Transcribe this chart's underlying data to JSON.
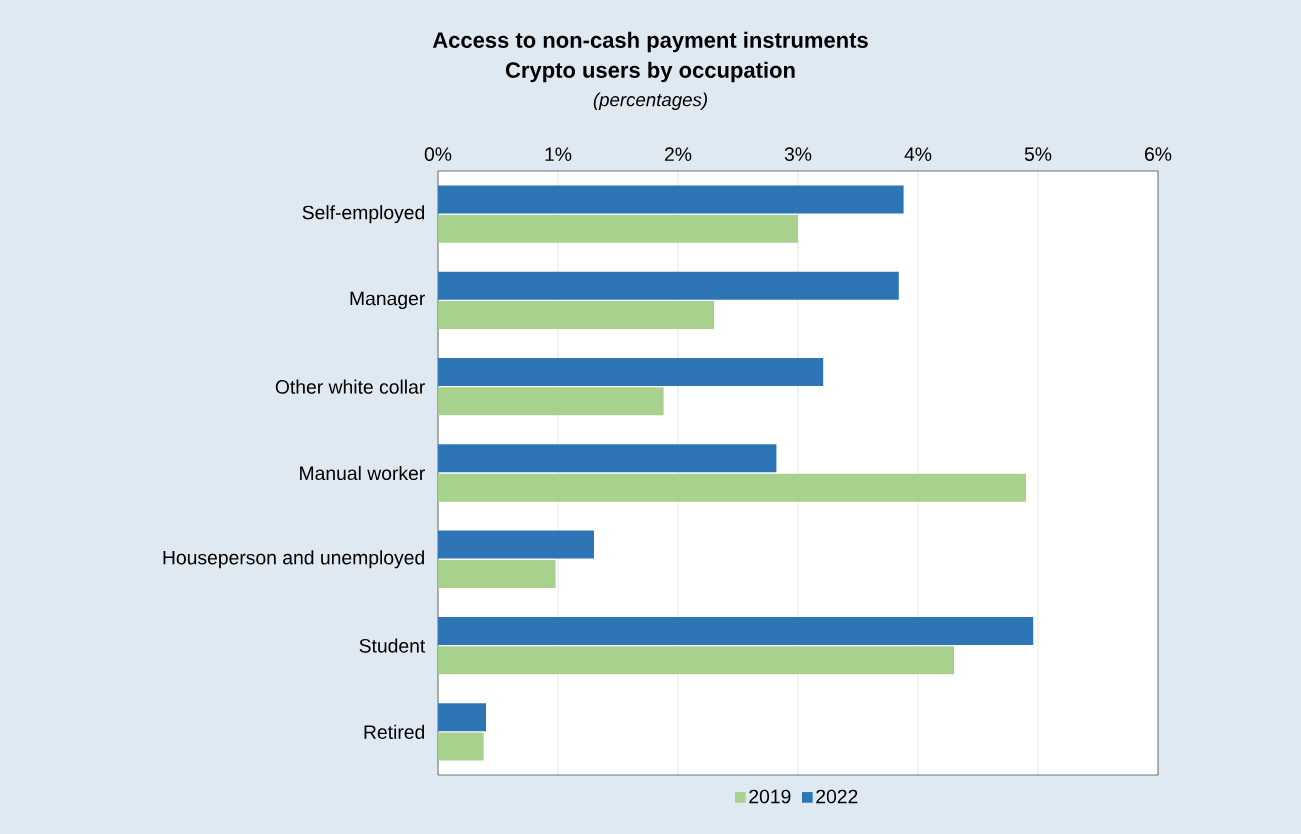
{
  "chart_data": {
    "type": "bar",
    "orientation": "horizontal",
    "title": "Access to non-cash payment instruments",
    "subtitle": "Crypto users by occupation",
    "annotations": [
      "(percentages)"
    ],
    "categories": [
      "Self-employed",
      "Manager",
      "Other white collar",
      "Manual worker",
      "Houseperson and unemployed",
      "Student",
      "Retired"
    ],
    "series": [
      {
        "name": "2019",
        "color": "#a9d18e",
        "values": [
          3.0,
          2.3,
          1.88,
          4.9,
          0.98,
          4.3,
          0.38
        ]
      },
      {
        "name": "2022",
        "color": "#2e75b6",
        "values": [
          3.88,
          3.84,
          3.21,
          2.82,
          1.3,
          4.96,
          0.4
        ]
      }
    ],
    "xlim": [
      0,
      6
    ],
    "xticks": [
      {
        "value": 0,
        "label": "0%"
      },
      {
        "value": 1,
        "label": "1%"
      },
      {
        "value": 2,
        "label": "2%"
      },
      {
        "value": 3,
        "label": "3%"
      },
      {
        "value": 4,
        "label": "4%"
      },
      {
        "value": 5,
        "label": "5%"
      },
      {
        "value": 6,
        "label": "6%"
      }
    ],
    "grid": "x",
    "legend": "bottom"
  }
}
